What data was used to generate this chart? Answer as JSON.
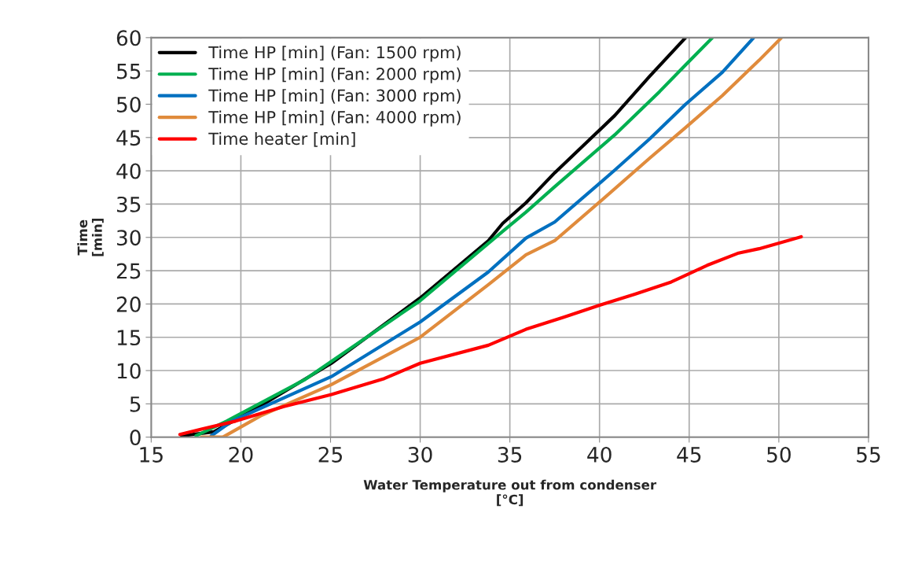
{
  "chart_data": {
    "type": "line",
    "xlabel": "Water Temperature out from condenser\n[°C]",
    "ylabel": "Time\n[min]",
    "xlim": [
      15,
      55
    ],
    "xticks": [
      15,
      20,
      25,
      30,
      35,
      40,
      45,
      50,
      55
    ],
    "ylim": [
      0,
      60
    ],
    "yticks": [
      0,
      5,
      10,
      15,
      20,
      25,
      30,
      35,
      40,
      45,
      50,
      55,
      60
    ],
    "grid": true,
    "legend": "top left",
    "line_style": "solid",
    "marker": "none",
    "series": [
      {
        "name": "Time HP [min] (Fan: 1500 rpm)",
        "color": "#000000",
        "x": [
          16.7,
          18.5,
          21.1,
          25.05,
          30.0,
          33.8,
          34.6,
          35.9,
          37.5,
          40.85,
          42.8,
          44.8
        ],
        "values": [
          0.2,
          0.8,
          4.7,
          11.1,
          20.9,
          29.5,
          32.1,
          35.2,
          39.7,
          48.3,
          54.2,
          60
        ]
      },
      {
        "name": "Time HP [min] (Fan: 2000 rpm)",
        "color": "#00b050",
        "x": [
          17.5,
          19.2,
          23.6,
          30.0,
          34.6,
          35.9,
          37.5,
          40.85,
          43.35,
          44.8,
          46.3
        ],
        "values": [
          0.2,
          2.4,
          8.7,
          20.5,
          30.9,
          33.8,
          37.6,
          45.4,
          51.9,
          55.9,
          60
        ]
      },
      {
        "name": "Time HP [min] (Fan: 3000 rpm)",
        "color": "#0070c0",
        "x": [
          18.35,
          19.5,
          25.05,
          30.0,
          33.8,
          35.9,
          37.5,
          40.85,
          42.8,
          44.8,
          46.85,
          48.6
        ],
        "values": [
          0.2,
          2.4,
          9.1,
          17.3,
          24.8,
          29.9,
          32.3,
          40.1,
          44.8,
          50.0,
          54.8,
          60
        ]
      },
      {
        "name": "Time HP [min] (Fan: 4000 rpm)",
        "color": "#e08b3c",
        "x": [
          17.8,
          19.0,
          21.1,
          25.05,
          30.0,
          33.8,
          35.9,
          37.5,
          40.0,
          42.8,
          44.8,
          46.85,
          48.9,
          50.15
        ],
        "values": [
          0.0,
          0.0,
          3.2,
          7.9,
          15.0,
          22.9,
          27.4,
          29.5,
          35.3,
          41.9,
          46.5,
          51.3,
          56.6,
          60
        ]
      },
      {
        "name": "Time heater [min]",
        "color": "#ff0000",
        "x": [
          16.6,
          17.8,
          19.7,
          22.4,
          25.05,
          28.0,
          30.0,
          33.8,
          35.9,
          38.0,
          40.0,
          42.0,
          44.0,
          46.0,
          47.7,
          48.9,
          51.25
        ],
        "values": [
          0.4,
          1.2,
          2.4,
          4.6,
          6.4,
          8.8,
          11.1,
          13.8,
          16.2,
          18.0,
          19.8,
          21.5,
          23.3,
          25.8,
          27.6,
          28.3,
          30.1
        ]
      }
    ]
  }
}
